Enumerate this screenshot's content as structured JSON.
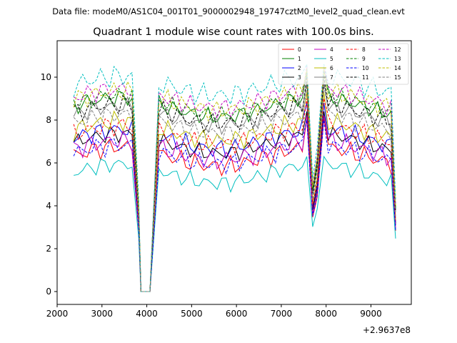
{
  "header": {
    "data_file": "Data file: modeM0/AS1C04_001T01_9000002948_19747cztM0_level2_quad_clean.evt"
  },
  "chart_data": {
    "type": "line",
    "title": "Quadrant 1 module wise count rates with 100.0s bins.",
    "xlabel": "",
    "ylabel": "",
    "xlim": [
      2000,
      9900
    ],
    "ylim": [
      -0.6,
      11.7
    ],
    "grid": false,
    "legend_placement": "top-right",
    "x_offset_label": "+2.9637e8",
    "x_ticks": [
      2000,
      3000,
      4000,
      5000,
      6000,
      7000,
      8000,
      9000
    ],
    "x_tick_labels": [
      "2000",
      "3000",
      "4000",
      "5000",
      "6000",
      "7000",
      "8000",
      "9000"
    ],
    "y_ticks": [
      0,
      2,
      4,
      6,
      8,
      10
    ],
    "y_tick_labels": [
      "0",
      "2",
      "4",
      "6",
      "8",
      "10"
    ],
    "segments": [
      {
        "start": 2370,
        "end": 3670,
        "step": 100
      },
      {
        "start": 3820,
        "end": 3820,
        "step": 100
      },
      {
        "start": 3870,
        "end": 4070,
        "step": 100
      },
      {
        "start": 4270,
        "end": 7620,
        "step": 100
      },
      {
        "start": 7700,
        "end": 7800,
        "step": 100
      },
      {
        "start": 7950,
        "end": 9570,
        "step": 100
      }
    ],
    "series": [
      {
        "name": "0",
        "color": "#ff0000",
        "dash": "solid",
        "base": 6.3,
        "amp": 0.35,
        "phase": 0.3,
        "dip": 0.0,
        "spike": 8.1
      },
      {
        "name": "1",
        "color": "#008000",
        "dash": "solid",
        "base": 8.6,
        "amp": 0.3,
        "phase": 1.1,
        "dip": 0.0,
        "spike": 10.3
      },
      {
        "name": "2",
        "color": "#0000ff",
        "dash": "solid",
        "base": 7.1,
        "amp": 0.35,
        "phase": 2.0,
        "dip": 0.0,
        "spike": 8.8
      },
      {
        "name": "3",
        "color": "#000000",
        "dash": "solid",
        "base": 6.9,
        "amp": 0.3,
        "phase": 2.7,
        "dip": 0.0,
        "spike": 8.4
      },
      {
        "name": "4",
        "color": "#c000c0",
        "dash": "solid",
        "base": 6.6,
        "amp": 0.35,
        "phase": 3.4,
        "dip": 0.0,
        "spike": 8.2
      },
      {
        "name": "5",
        "color": "#00bfbf",
        "dash": "solid",
        "base": 5.5,
        "amp": 0.3,
        "phase": 4.1,
        "dip": 0.0,
        "spike": 6.3
      },
      {
        "name": "6",
        "color": "#bfbf00",
        "dash": "solid",
        "base": 7.5,
        "amp": 0.35,
        "phase": 4.8,
        "dip": 0.0,
        "spike": 9.3
      },
      {
        "name": "7",
        "color": "#808080",
        "dash": "solid",
        "base": 8.2,
        "amp": 0.3,
        "phase": 5.5,
        "dip": 0.0,
        "spike": 9.8
      },
      {
        "name": "8",
        "color": "#ff0000",
        "dash": "dashed",
        "base": 7.3,
        "amp": 0.35,
        "phase": 0.8,
        "dip": 0.0,
        "spike": 9.0
      },
      {
        "name": "9",
        "color": "#008000",
        "dash": "dashed",
        "base": 8.7,
        "amp": 0.3,
        "phase": 1.6,
        "dip": 0.0,
        "spike": 10.1
      },
      {
        "name": "10",
        "color": "#0000ff",
        "dash": "dashed",
        "base": 6.4,
        "amp": 0.35,
        "phase": 2.4,
        "dip": 0.0,
        "spike": 8.0
      },
      {
        "name": "11",
        "color": "#000000",
        "dash": "dashed",
        "base": 8.3,
        "amp": 0.35,
        "phase": 3.1,
        "dip": 0.0,
        "spike": 10.0
      },
      {
        "name": "12",
        "color": "#c000c0",
        "dash": "dashed",
        "base": 9.0,
        "amp": 0.35,
        "phase": 3.9,
        "dip": 0.0,
        "spike": 10.5
      },
      {
        "name": "13",
        "color": "#00bfbf",
        "dash": "dashed",
        "base": 9.6,
        "amp": 0.4,
        "phase": 4.6,
        "dip": 0.0,
        "spike": 10.6
      },
      {
        "name": "14",
        "color": "#bfbf00",
        "dash": "dashed",
        "base": 8.9,
        "amp": 0.35,
        "phase": 5.2,
        "dip": 0.0,
        "spike": 10.4
      },
      {
        "name": "15",
        "color": "#808080",
        "dash": "dashed",
        "base": 7.8,
        "amp": 0.35,
        "phase": 6.0,
        "dip": 0.0,
        "spike": 9.6
      }
    ]
  }
}
